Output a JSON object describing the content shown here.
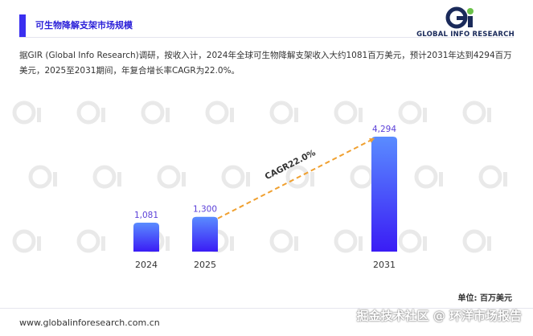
{
  "header": {
    "title": "可生物降解支架市场规模"
  },
  "logo": {
    "text": "GLOBAL INFO RESEARCH"
  },
  "summary": "据GIR (Global Info Research)调研，按收入计，2024年全球可生物降解支架收入大约1081百万美元，预计2031年达到4294百万美元，2025至2031期间，年复合增长率CAGR为22.0%。",
  "chart_data": {
    "type": "bar",
    "categories": [
      "2024",
      "2025",
      "2031"
    ],
    "values": [
      1081,
      1300,
      4294
    ],
    "value_labels": [
      "1,081",
      "1,300",
      "4,294"
    ],
    "annotation": "CAGR22.0%",
    "unit_label": "单位: 百万美元",
    "bar_color_top": "#5a8cff",
    "bar_color_bottom": "#3a1cf5",
    "label_color": "#5a3fd8",
    "cagr_line_color": "#f0a030"
  },
  "footer": {
    "url": "www.globalinforesearch.com.cn",
    "watermark": "掘金技术社区 @ 环洋市场报告"
  },
  "colors": {
    "accent": "#3a2ff0"
  }
}
